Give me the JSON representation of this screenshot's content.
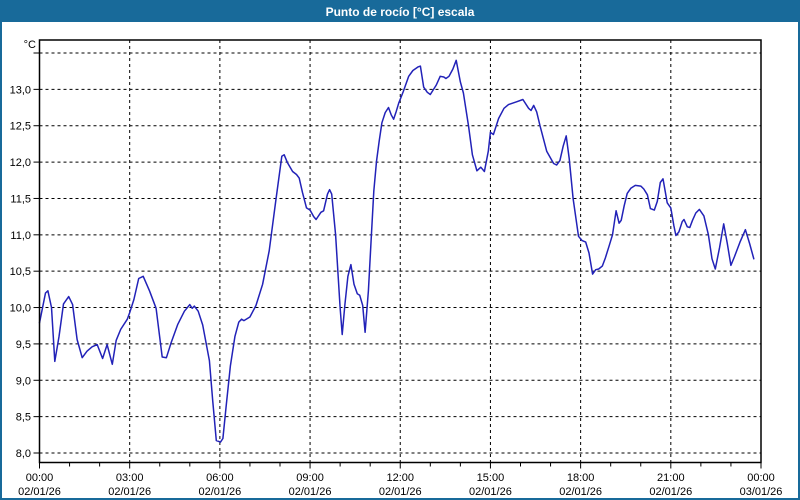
{
  "window": {
    "title": "Punto de rocío [°C] escala"
  },
  "colors": {
    "titlebar_bg": "#186a9a",
    "titlebar_text": "#ffffff",
    "frame_border": "#186a9a",
    "plot_bg": "#ffffff",
    "plot_border": "#000000",
    "grid": "#000000",
    "tick_label": "#000000",
    "line": "#2222b8"
  },
  "chart_data": {
    "type": "line",
    "title": "Punto de rocío [°C] escala",
    "y_unit": "°C",
    "grid": "dashed",
    "legend": "none",
    "y_axis": {
      "min": 8.0,
      "max": 13.5,
      "grid_step": 0.5,
      "tick_labels": [
        {
          "value": 13.0,
          "label": "13,0"
        },
        {
          "value": 12.5,
          "label": "12,5"
        },
        {
          "value": 12.0,
          "label": "12,0"
        },
        {
          "value": 11.5,
          "label": "11,5"
        },
        {
          "value": 11.0,
          "label": "11,0"
        },
        {
          "value": 10.5,
          "label": "10,5"
        },
        {
          "value": 10.0,
          "label": "10,0"
        },
        {
          "value": 9.5,
          "label": "9,5"
        },
        {
          "value": 9.0,
          "label": "9,0"
        },
        {
          "value": 8.5,
          "label": "8,5"
        },
        {
          "value": 8.0,
          "label": "8,0"
        }
      ]
    },
    "x_axis": {
      "min_hours": 0,
      "max_hours": 24,
      "major_step_hours": 3,
      "minor_step_hours": 1,
      "major_ticks": [
        {
          "t": 0,
          "time": "00:00",
          "date": "02/01/26"
        },
        {
          "t": 3,
          "time": "03:00",
          "date": "02/01/26"
        },
        {
          "t": 6,
          "time": "06:00",
          "date": "02/01/26"
        },
        {
          "t": 9,
          "time": "09:00",
          "date": "02/01/26"
        },
        {
          "t": 12,
          "time": "12:00",
          "date": "02/01/26"
        },
        {
          "t": 15,
          "time": "15:00",
          "date": "02/01/26"
        },
        {
          "t": 18,
          "time": "18:00",
          "date": "02/01/26"
        },
        {
          "t": 21,
          "time": "21:00",
          "date": "02/01/26"
        },
        {
          "t": 24,
          "time": "00:00",
          "date": "03/01/26"
        }
      ]
    },
    "series": [
      {
        "name": "Punto de rocío",
        "color": "#2222b8",
        "points": [
          [
            0,
            9.79
          ],
          [
            0.2,
            10.2
          ],
          [
            0.28,
            10.23
          ],
          [
            0.4,
            10.0
          ],
          [
            0.51,
            9.26
          ],
          [
            0.65,
            9.6
          ],
          [
            0.8,
            10.05
          ],
          [
            0.97,
            10.15
          ],
          [
            1.1,
            10.04
          ],
          [
            1.25,
            9.56
          ],
          [
            1.42,
            9.31
          ],
          [
            1.58,
            9.4
          ],
          [
            1.75,
            9.46
          ],
          [
            1.92,
            9.49
          ],
          [
            2.1,
            9.3
          ],
          [
            2.25,
            9.49
          ],
          [
            2.42,
            9.22
          ],
          [
            2.55,
            9.55
          ],
          [
            2.7,
            9.7
          ],
          [
            2.92,
            9.84
          ],
          [
            3.0,
            9.93
          ],
          [
            3.14,
            10.11
          ],
          [
            3.3,
            10.4
          ],
          [
            3.45,
            10.43
          ],
          [
            3.66,
            10.23
          ],
          [
            3.88,
            9.99
          ],
          [
            4.08,
            9.32
          ],
          [
            4.22,
            9.31
          ],
          [
            4.38,
            9.52
          ],
          [
            4.6,
            9.77
          ],
          [
            4.82,
            9.95
          ],
          [
            5.0,
            10.04
          ],
          [
            5.08,
            9.99
          ],
          [
            5.15,
            10.02
          ],
          [
            5.28,
            9.95
          ],
          [
            5.43,
            9.76
          ],
          [
            5.65,
            9.27
          ],
          [
            5.76,
            8.72
          ],
          [
            5.88,
            8.17
          ],
          [
            6.02,
            8.15
          ],
          [
            6.1,
            8.2
          ],
          [
            6.21,
            8.65
          ],
          [
            6.35,
            9.2
          ],
          [
            6.5,
            9.6
          ],
          [
            6.63,
            9.8
          ],
          [
            6.72,
            9.84
          ],
          [
            6.8,
            9.82
          ],
          [
            7.0,
            9.87
          ],
          [
            7.2,
            10.03
          ],
          [
            7.42,
            10.32
          ],
          [
            7.64,
            10.78
          ],
          [
            7.86,
            11.47
          ],
          [
            8.06,
            12.08
          ],
          [
            8.14,
            12.1
          ],
          [
            8.25,
            11.99
          ],
          [
            8.42,
            11.87
          ],
          [
            8.55,
            11.83
          ],
          [
            8.64,
            11.78
          ],
          [
            8.75,
            11.58
          ],
          [
            8.88,
            11.37
          ],
          [
            9.0,
            11.34
          ],
          [
            9.12,
            11.25
          ],
          [
            9.2,
            11.21
          ],
          [
            9.36,
            11.31
          ],
          [
            9.45,
            11.33
          ],
          [
            9.58,
            11.56
          ],
          [
            9.65,
            11.62
          ],
          [
            9.72,
            11.56
          ],
          [
            9.85,
            11.0
          ],
          [
            10.0,
            10.0
          ],
          [
            10.07,
            9.63
          ],
          [
            10.16,
            10.04
          ],
          [
            10.26,
            10.43
          ],
          [
            10.36,
            10.59
          ],
          [
            10.46,
            10.32
          ],
          [
            10.57,
            10.19
          ],
          [
            10.65,
            10.17
          ],
          [
            10.75,
            10.03
          ],
          [
            10.83,
            9.66
          ],
          [
            10.94,
            10.23
          ],
          [
            11.03,
            10.92
          ],
          [
            11.12,
            11.6
          ],
          [
            11.21,
            12.01
          ],
          [
            11.3,
            12.29
          ],
          [
            11.39,
            12.54
          ],
          [
            11.5,
            12.68
          ],
          [
            11.61,
            12.75
          ],
          [
            11.7,
            12.65
          ],
          [
            11.78,
            12.59
          ],
          [
            11.87,
            12.7
          ],
          [
            11.95,
            12.81
          ],
          [
            12.1,
            12.97
          ],
          [
            12.28,
            13.18
          ],
          [
            12.42,
            13.26
          ],
          [
            12.6,
            13.31
          ],
          [
            12.67,
            13.32
          ],
          [
            12.78,
            13.03
          ],
          [
            12.9,
            12.96
          ],
          [
            13.0,
            12.93
          ],
          [
            13.2,
            13.06
          ],
          [
            13.33,
            13.18
          ],
          [
            13.45,
            13.17
          ],
          [
            13.52,
            13.15
          ],
          [
            13.62,
            13.18
          ],
          [
            13.75,
            13.28
          ],
          [
            13.86,
            13.4
          ],
          [
            14.0,
            13.1
          ],
          [
            14.1,
            12.95
          ],
          [
            14.27,
            12.5
          ],
          [
            14.4,
            12.1
          ],
          [
            14.55,
            11.88
          ],
          [
            14.68,
            11.93
          ],
          [
            14.8,
            11.87
          ],
          [
            14.93,
            12.15
          ],
          [
            15.0,
            12.41
          ],
          [
            15.1,
            12.38
          ],
          [
            15.27,
            12.6
          ],
          [
            15.45,
            12.74
          ],
          [
            15.6,
            12.79
          ],
          [
            15.88,
            12.83
          ],
          [
            16.08,
            12.86
          ],
          [
            16.27,
            12.74
          ],
          [
            16.35,
            12.71
          ],
          [
            16.44,
            12.78
          ],
          [
            16.54,
            12.69
          ],
          [
            16.65,
            12.5
          ],
          [
            16.87,
            12.15
          ],
          [
            17.1,
            11.98
          ],
          [
            17.2,
            11.96
          ],
          [
            17.31,
            12.02
          ],
          [
            17.42,
            12.22
          ],
          [
            17.52,
            12.36
          ],
          [
            17.62,
            12.05
          ],
          [
            17.75,
            11.5
          ],
          [
            17.93,
            10.98
          ],
          [
            18.05,
            10.92
          ],
          [
            18.17,
            10.9
          ],
          [
            18.28,
            10.75
          ],
          [
            18.4,
            10.46
          ],
          [
            18.5,
            10.52
          ],
          [
            18.6,
            10.53
          ],
          [
            18.72,
            10.57
          ],
          [
            18.82,
            10.68
          ],
          [
            18.95,
            10.85
          ],
          [
            19.06,
            11.0
          ],
          [
            19.18,
            11.33
          ],
          [
            19.28,
            11.16
          ],
          [
            19.35,
            11.2
          ],
          [
            19.45,
            11.4
          ],
          [
            19.55,
            11.57
          ],
          [
            19.67,
            11.64
          ],
          [
            19.82,
            11.68
          ],
          [
            20.0,
            11.67
          ],
          [
            20.1,
            11.63
          ],
          [
            20.22,
            11.55
          ],
          [
            20.32,
            11.36
          ],
          [
            20.45,
            11.34
          ],
          [
            20.55,
            11.46
          ],
          [
            20.65,
            11.72
          ],
          [
            20.74,
            11.77
          ],
          [
            20.88,
            11.44
          ],
          [
            21.0,
            11.37
          ],
          [
            21.1,
            11.13
          ],
          [
            21.17,
            10.99
          ],
          [
            21.27,
            11.04
          ],
          [
            21.38,
            11.18
          ],
          [
            21.44,
            11.21
          ],
          [
            21.55,
            11.11
          ],
          [
            21.63,
            11.1
          ],
          [
            21.72,
            11.2
          ],
          [
            21.83,
            11.3
          ],
          [
            21.95,
            11.35
          ],
          [
            22.1,
            11.26
          ],
          [
            22.25,
            11.0
          ],
          [
            22.37,
            10.67
          ],
          [
            22.48,
            10.53
          ],
          [
            22.62,
            10.82
          ],
          [
            22.76,
            11.15
          ],
          [
            22.88,
            10.88
          ],
          [
            23.0,
            10.58
          ],
          [
            23.12,
            10.7
          ],
          [
            23.3,
            10.9
          ],
          [
            23.48,
            11.07
          ],
          [
            23.62,
            10.88
          ],
          [
            23.76,
            10.67
          ]
        ]
      }
    ]
  }
}
